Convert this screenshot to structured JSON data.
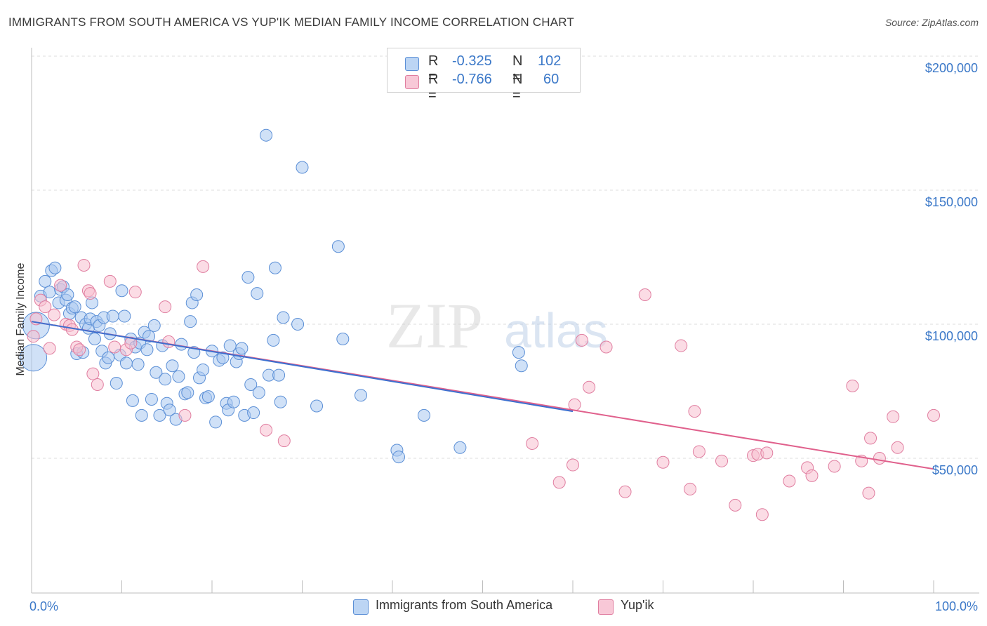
{
  "header": {
    "title": "IMMIGRANTS FROM SOUTH AMERICA VS YUP'IK MEDIAN FAMILY INCOME CORRELATION CHART",
    "source": "Source: ZipAtlas.com"
  },
  "legend": {
    "rows": [
      {
        "r_label": "R =",
        "r_value": "-0.325",
        "n_label": "N =",
        "n_value": "102"
      },
      {
        "r_label": "R =",
        "r_value": "-0.766",
        "n_label": "N =",
        "n_value": "60"
      }
    ]
  },
  "bottom_legend": {
    "series_a": "Immigrants from South America",
    "series_b": "Yup'ik"
  },
  "watermark": {
    "zip": "ZIP",
    "atlas": "atlas"
  },
  "colors": {
    "blue_fill": "#a9c8f0",
    "blue_stroke": "#5b8fd6",
    "blue_line": "#3d6fcf",
    "pink_fill": "#f7bfd0",
    "pink_stroke": "#e07ea0",
    "pink_line": "#e0608c",
    "tick_text": "#3b78c8"
  },
  "chart_data": {
    "type": "scatter",
    "title": "IMMIGRANTS FROM SOUTH AMERICA VS YUP'IK MEDIAN FAMILY INCOME CORRELATION CHART",
    "xlabel": "",
    "ylabel": "Median Family Income",
    "xlim": [
      0,
      100
    ],
    "ylim": [
      0,
      210000
    ],
    "x_tick_labels": [
      "0.0%",
      "100.0%"
    ],
    "y_ticks": [
      50000,
      100000,
      150000,
      200000
    ],
    "y_tick_labels": [
      "$50,000",
      "$100,000",
      "$150,000",
      "$200,000"
    ],
    "grid": true,
    "legend_position": "top-center",
    "series": [
      {
        "name": "Immigrants from South America",
        "r": -0.325,
        "n": 102,
        "trend": {
          "x": [
            0,
            60
          ],
          "y": [
            101000,
            67500
          ]
        },
        "points": [
          {
            "x": 0.2,
            "y": 87500,
            "size": "large"
          },
          {
            "x": 0.5,
            "y": 99500,
            "size": "large"
          },
          {
            "x": 1.0,
            "y": 110500
          },
          {
            "x": 1.5,
            "y": 116000
          },
          {
            "x": 2.0,
            "y": 112000
          },
          {
            "x": 2.2,
            "y": 120000
          },
          {
            "x": 2.6,
            "y": 121000
          },
          {
            "x": 3.0,
            "y": 108000
          },
          {
            "x": 3.2,
            "y": 113000
          },
          {
            "x": 3.5,
            "y": 114000
          },
          {
            "x": 3.8,
            "y": 109000
          },
          {
            "x": 4.0,
            "y": 111000
          },
          {
            "x": 4.2,
            "y": 104000
          },
          {
            "x": 4.5,
            "y": 106000
          },
          {
            "x": 4.8,
            "y": 106500
          },
          {
            "x": 5.0,
            "y": 89000
          },
          {
            "x": 5.5,
            "y": 102500
          },
          {
            "x": 5.7,
            "y": 89500
          },
          {
            "x": 6.0,
            "y": 100000
          },
          {
            "x": 6.3,
            "y": 98500
          },
          {
            "x": 6.5,
            "y": 102000
          },
          {
            "x": 6.7,
            "y": 108000
          },
          {
            "x": 7.0,
            "y": 94500
          },
          {
            "x": 7.2,
            "y": 101000
          },
          {
            "x": 7.5,
            "y": 99500
          },
          {
            "x": 7.8,
            "y": 90000
          },
          {
            "x": 8.0,
            "y": 102500
          },
          {
            "x": 8.2,
            "y": 85500
          },
          {
            "x": 8.5,
            "y": 87500
          },
          {
            "x": 8.7,
            "y": 96500
          },
          {
            "x": 9.0,
            "y": 103000
          },
          {
            "x": 9.4,
            "y": 78000
          },
          {
            "x": 9.8,
            "y": 88500
          },
          {
            "x": 10.0,
            "y": 112500
          },
          {
            "x": 10.3,
            "y": 103000
          },
          {
            "x": 10.5,
            "y": 85500
          },
          {
            "x": 11.0,
            "y": 94500
          },
          {
            "x": 11.2,
            "y": 71500
          },
          {
            "x": 11.5,
            "y": 91500
          },
          {
            "x": 11.8,
            "y": 85000
          },
          {
            "x": 12.0,
            "y": 93000
          },
          {
            "x": 12.2,
            "y": 66000
          },
          {
            "x": 12.5,
            "y": 97000
          },
          {
            "x": 12.8,
            "y": 90500
          },
          {
            "x": 13.0,
            "y": 95500
          },
          {
            "x": 13.3,
            "y": 72000
          },
          {
            "x": 13.6,
            "y": 99500
          },
          {
            "x": 13.8,
            "y": 82000
          },
          {
            "x": 14.2,
            "y": 66000
          },
          {
            "x": 14.5,
            "y": 92000
          },
          {
            "x": 14.8,
            "y": 79500
          },
          {
            "x": 15.0,
            "y": 70500
          },
          {
            "x": 15.3,
            "y": 68000
          },
          {
            "x": 15.6,
            "y": 84500
          },
          {
            "x": 16.0,
            "y": 64500
          },
          {
            "x": 16.3,
            "y": 80500
          },
          {
            "x": 16.6,
            "y": 92500
          },
          {
            "x": 17.0,
            "y": 74000
          },
          {
            "x": 17.3,
            "y": 74500
          },
          {
            "x": 17.6,
            "y": 101000
          },
          {
            "x": 17.8,
            "y": 108000
          },
          {
            "x": 18.0,
            "y": 89500
          },
          {
            "x": 18.3,
            "y": 111000
          },
          {
            "x": 18.6,
            "y": 80000
          },
          {
            "x": 19.0,
            "y": 83000
          },
          {
            "x": 19.3,
            "y": 72500
          },
          {
            "x": 19.6,
            "y": 73000
          },
          {
            "x": 20.0,
            "y": 90000
          },
          {
            "x": 20.4,
            "y": 63500
          },
          {
            "x": 20.8,
            "y": 86500
          },
          {
            "x": 21.2,
            "y": 87500
          },
          {
            "x": 21.6,
            "y": 70500
          },
          {
            "x": 21.8,
            "y": 68000
          },
          {
            "x": 22.0,
            "y": 92000
          },
          {
            "x": 22.4,
            "y": 71000
          },
          {
            "x": 22.7,
            "y": 86000
          },
          {
            "x": 23.0,
            "y": 89000
          },
          {
            "x": 23.3,
            "y": 91000
          },
          {
            "x": 23.6,
            "y": 66000
          },
          {
            "x": 24.0,
            "y": 117500
          },
          {
            "x": 24.3,
            "y": 77500
          },
          {
            "x": 24.6,
            "y": 67000
          },
          {
            "x": 25.0,
            "y": 111500
          },
          {
            "x": 25.2,
            "y": 74500
          },
          {
            "x": 26.0,
            "y": 170500
          },
          {
            "x": 26.3,
            "y": 81000
          },
          {
            "x": 26.8,
            "y": 94000
          },
          {
            "x": 27.0,
            "y": 121000
          },
          {
            "x": 27.4,
            "y": 81000
          },
          {
            "x": 27.6,
            "y": 71000
          },
          {
            "x": 27.9,
            "y": 102500
          },
          {
            "x": 29.5,
            "y": 100000
          },
          {
            "x": 30.0,
            "y": 158500
          },
          {
            "x": 31.6,
            "y": 69500
          },
          {
            "x": 34.0,
            "y": 129000
          },
          {
            "x": 34.5,
            "y": 94500
          },
          {
            "x": 36.5,
            "y": 73500
          },
          {
            "x": 40.5,
            "y": 53000
          },
          {
            "x": 40.7,
            "y": 50500
          },
          {
            "x": 43.5,
            "y": 66000
          },
          {
            "x": 47.5,
            "y": 54000
          },
          {
            "x": 54.0,
            "y": 89500
          },
          {
            "x": 54.3,
            "y": 84500
          }
        ]
      },
      {
        "name": "Yup'ik",
        "r": -0.766,
        "n": 60,
        "trend": {
          "x": [
            0,
            100
          ],
          "y": [
            101000,
            46000
          ]
        },
        "points": [
          {
            "x": 0.2,
            "y": 95500
          },
          {
            "x": 0.5,
            "y": 102000
          },
          {
            "x": 1.0,
            "y": 109000
          },
          {
            "x": 1.5,
            "y": 106500
          },
          {
            "x": 2.0,
            "y": 91000
          },
          {
            "x": 2.5,
            "y": 103500
          },
          {
            "x": 3.2,
            "y": 114500
          },
          {
            "x": 3.8,
            "y": 100000
          },
          {
            "x": 4.2,
            "y": 99500
          },
          {
            "x": 4.5,
            "y": 98000
          },
          {
            "x": 5.0,
            "y": 91500
          },
          {
            "x": 5.3,
            "y": 90500
          },
          {
            "x": 5.8,
            "y": 122000
          },
          {
            "x": 6.3,
            "y": 112500
          },
          {
            "x": 6.5,
            "y": 111500
          },
          {
            "x": 6.8,
            "y": 81500
          },
          {
            "x": 7.3,
            "y": 77500
          },
          {
            "x": 8.7,
            "y": 116000
          },
          {
            "x": 9.2,
            "y": 91500
          },
          {
            "x": 10.5,
            "y": 90500
          },
          {
            "x": 11.0,
            "y": 93000
          },
          {
            "x": 11.5,
            "y": 112000
          },
          {
            "x": 14.8,
            "y": 106500
          },
          {
            "x": 15.2,
            "y": 93500
          },
          {
            "x": 17.0,
            "y": 66000
          },
          {
            "x": 19.0,
            "y": 121500
          },
          {
            "x": 26.0,
            "y": 60500
          },
          {
            "x": 28.0,
            "y": 56500
          },
          {
            "x": 55.5,
            "y": 55500
          },
          {
            "x": 58.5,
            "y": 41000
          },
          {
            "x": 60.0,
            "y": 47500
          },
          {
            "x": 60.2,
            "y": 70000
          },
          {
            "x": 61.0,
            "y": 94000
          },
          {
            "x": 61.8,
            "y": 76500
          },
          {
            "x": 63.7,
            "y": 91500
          },
          {
            "x": 65.8,
            "y": 37500
          },
          {
            "x": 68.0,
            "y": 111000
          },
          {
            "x": 70.0,
            "y": 48500
          },
          {
            "x": 72.0,
            "y": 92000
          },
          {
            "x": 73.0,
            "y": 38500
          },
          {
            "x": 73.5,
            "y": 67500
          },
          {
            "x": 74.0,
            "y": 52500
          },
          {
            "x": 76.5,
            "y": 49000
          },
          {
            "x": 78.0,
            "y": 32500
          },
          {
            "x": 80.0,
            "y": 51000
          },
          {
            "x": 80.5,
            "y": 51500
          },
          {
            "x": 81.0,
            "y": 29000
          },
          {
            "x": 81.5,
            "y": 52000
          },
          {
            "x": 84.0,
            "y": 41500
          },
          {
            "x": 86.0,
            "y": 46500
          },
          {
            "x": 86.5,
            "y": 43500
          },
          {
            "x": 89.0,
            "y": 47000
          },
          {
            "x": 91.0,
            "y": 77000
          },
          {
            "x": 92.0,
            "y": 49000
          },
          {
            "x": 93.0,
            "y": 57500
          },
          {
            "x": 92.8,
            "y": 37000
          },
          {
            "x": 94.0,
            "y": 50000
          },
          {
            "x": 95.5,
            "y": 65500
          },
          {
            "x": 96.0,
            "y": 54000
          },
          {
            "x": 100.0,
            "y": 66000
          }
        ]
      }
    ]
  }
}
